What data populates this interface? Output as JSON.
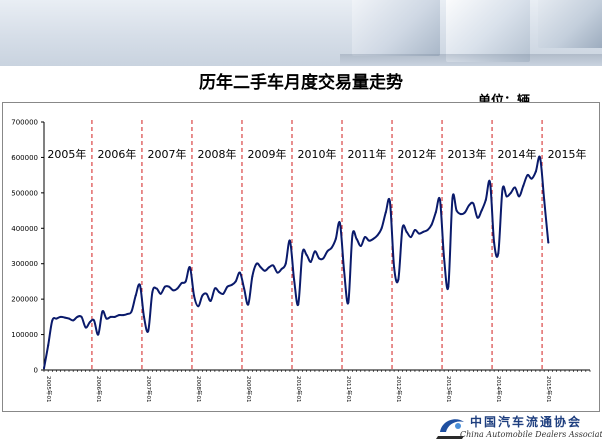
{
  "page": {
    "title": "历年二手车月度交易量走势",
    "unit_label": "单位：辆"
  },
  "logo": {
    "cn": "中国汽车流通协会",
    "en": "China Automobile Dealers Association",
    "mark": "CADA"
  },
  "colors": {
    "line": "#0a1a6b",
    "divider": "#d21f1f",
    "axis": "#000000"
  },
  "chart_data": {
    "type": "line",
    "xlabel": "",
    "ylabel": "",
    "ylim": [
      0,
      700000
    ],
    "yticks": [
      "0",
      "100000",
      "200000",
      "300000",
      "400000",
      "500000",
      "600000",
      "700000"
    ],
    "grid": false,
    "years": [
      "2005年",
      "2006年",
      "2007年",
      "2008年",
      "2009年",
      "2010年",
      "2011年",
      "2012年",
      "2013年",
      "2014年",
      "2015年"
    ],
    "x_tick_labels": [
      "2005年01",
      "2006年01",
      "2007年01",
      "2008年01",
      "2009年01",
      "2010年01",
      "2011年01",
      "2012年01",
      "2013年01",
      "2014年01",
      "2015年01"
    ],
    "series": [
      {
        "values": [
          5000,
          70000,
          140000,
          145000,
          150000,
          148000,
          145000,
          140000,
          150000,
          150000,
          120000,
          135000,
          140000,
          100000,
          165000,
          145000,
          150000,
          150000,
          155000,
          155000,
          158000,
          165000,
          210000,
          240000,
          150000,
          110000,
          220000,
          230000,
          215000,
          235000,
          235000,
          225000,
          230000,
          245000,
          250000,
          290000,
          210000,
          180000,
          210000,
          215000,
          195000,
          230000,
          220000,
          215000,
          235000,
          240000,
          250000,
          275000,
          230000,
          185000,
          265000,
          300000,
          290000,
          280000,
          290000,
          295000,
          275000,
          285000,
          300000,
          365000,
          255000,
          185000,
          330000,
          325000,
          305000,
          335000,
          315000,
          315000,
          335000,
          345000,
          370000,
          415000,
          280000,
          190000,
          380000,
          370000,
          350000,
          375000,
          365000,
          370000,
          380000,
          400000,
          445000,
          475000,
          290000,
          255000,
          400000,
          390000,
          375000,
          395000,
          385000,
          390000,
          395000,
          410000,
          445000,
          480000,
          315000,
          235000,
          485000,
          450000,
          440000,
          445000,
          465000,
          470000,
          430000,
          450000,
          480000,
          530000,
          360000,
          330000,
          510000,
          490000,
          500000,
          515000,
          490000,
          520000,
          550000,
          540000,
          560000,
          600000,
          480000,
          360000
        ]
      }
    ]
  }
}
